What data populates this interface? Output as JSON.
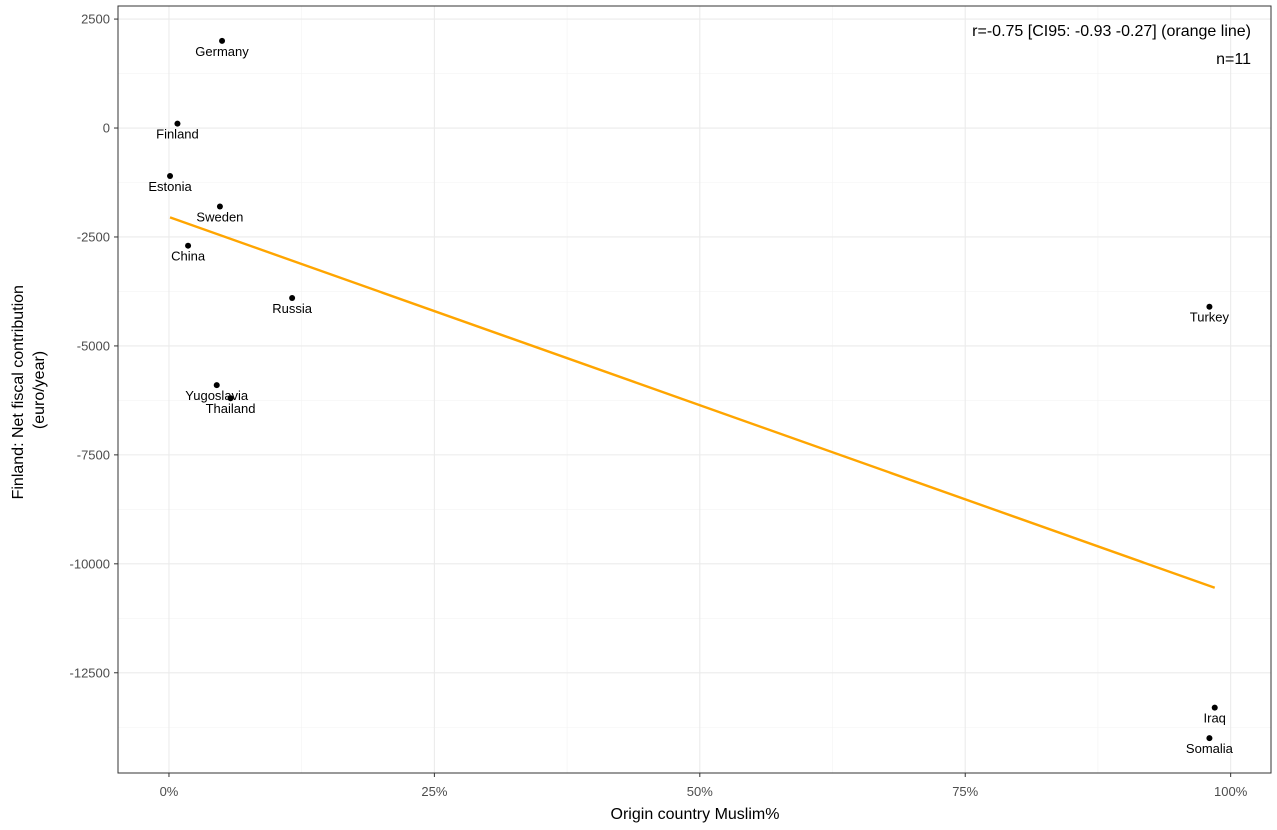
{
  "chart_data": {
    "type": "scatter",
    "xlabel": "Origin country Muslim%",
    "ylabel_lines": [
      "Finland: Net fiscal contribution",
      "(euro/year)"
    ],
    "x_ticks": [
      {
        "value": 0,
        "label": "0%"
      },
      {
        "value": 0.25,
        "label": "25%"
      },
      {
        "value": 0.5,
        "label": "50%"
      },
      {
        "value": 0.75,
        "label": "75%"
      },
      {
        "value": 1.0,
        "label": "100%"
      }
    ],
    "y_ticks": [
      {
        "value": 2500,
        "label": "2500"
      },
      {
        "value": 0,
        "label": "0"
      },
      {
        "value": -2500,
        "label": "-2500"
      },
      {
        "value": -5000,
        "label": "-5000"
      },
      {
        "value": -7500,
        "label": "-7500"
      },
      {
        "value": -10000,
        "label": "-10000"
      },
      {
        "value": -12500,
        "label": "-12500"
      }
    ],
    "xlim": [
      -0.048,
      1.038
    ],
    "ylim": [
      -14800,
      2800
    ],
    "grid": true,
    "points": [
      {
        "name": "Germany",
        "x": 0.05,
        "y": 2000
      },
      {
        "name": "Finland",
        "x": 0.008,
        "y": 100
      },
      {
        "name": "Estonia",
        "x": 0.001,
        "y": -1100
      },
      {
        "name": "Sweden",
        "x": 0.048,
        "y": -1800
      },
      {
        "name": "China",
        "x": 0.018,
        "y": -2700
      },
      {
        "name": "Russia",
        "x": 0.116,
        "y": -3900
      },
      {
        "name": "Yugoslavia",
        "x": 0.045,
        "y": -5900
      },
      {
        "name": "Thailand",
        "x": 0.058,
        "y": -6200
      },
      {
        "name": "Turkey",
        "x": 0.98,
        "y": -4100
      },
      {
        "name": "Iraq",
        "x": 0.985,
        "y": -13300
      },
      {
        "name": "Somalia",
        "x": 0.98,
        "y": -14000
      }
    ],
    "fit_line": {
      "color": "#FFA500",
      "x": [
        0.001,
        0.985
      ],
      "y": [
        -2050,
        -10550
      ]
    },
    "annotations": [
      "r=-0.75 [CI95: -0.93 -0.27] (orange line)",
      "n=11"
    ]
  }
}
